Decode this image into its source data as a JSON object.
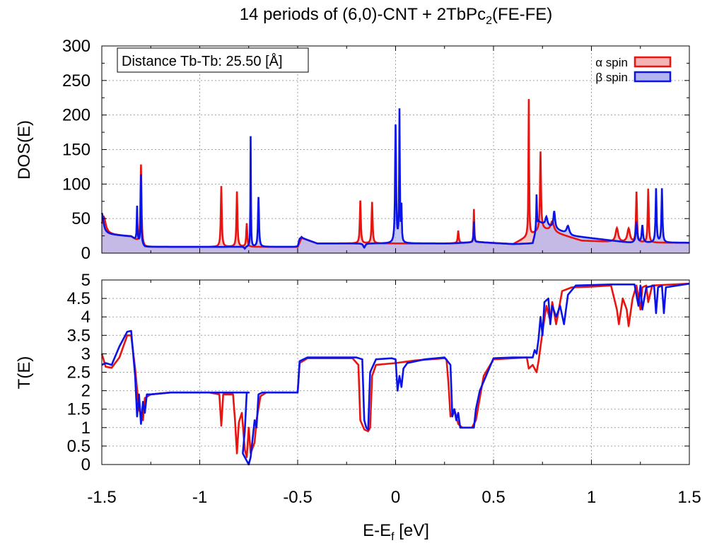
{
  "title": {
    "main": "14 periods of (6,0)-CNT + 2TbPc",
    "sub": "2",
    "tail": "(FE-FE)"
  },
  "colors": {
    "alpha": "#e8140f",
    "beta": "#0a14e6",
    "alpha_fill": "#f5b4b4",
    "beta_fill": "#b4b4f0",
    "overlap_fill": "#c8a0d4"
  },
  "annotation": "Distance Tb-Tb: 25.50 [Å]",
  "legend": [
    {
      "label": "α spin",
      "series": "alpha"
    },
    {
      "label": "β spin",
      "series": "beta"
    }
  ],
  "xaxis": {
    "label_main": "E-E",
    "label_sub": "f",
    "label_tail": " [eV]",
    "range": [
      -1.5,
      1.5
    ],
    "ticks": [
      "-1.5",
      "-1",
      "-0.5",
      "0",
      "0.5",
      "1",
      "1.5"
    ]
  },
  "chart_data": [
    {
      "type": "area",
      "ylabel": "DOS(E)",
      "xlim": [
        -1.5,
        1.5
      ],
      "ylim": [
        0,
        300
      ],
      "yticks": [
        "0",
        "50",
        "100",
        "150",
        "200",
        "250",
        "300"
      ],
      "grid": true,
      "legend_position": "top-right",
      "series": [
        {
          "name": "α spin",
          "baseline": [
            [
              -1.5,
              28
            ],
            [
              -1.35,
              24
            ],
            [
              -1.28,
              9
            ],
            [
              -0.5,
              9
            ],
            [
              -0.48,
              22
            ],
            [
              -0.4,
              14
            ],
            [
              0.28,
              14
            ],
            [
              0.42,
              16
            ],
            [
              0.6,
              13
            ],
            [
              0.75,
              35
            ],
            [
              0.95,
              18
            ],
            [
              1.2,
              15
            ],
            [
              1.5,
              15
            ]
          ],
          "peaks": [
            [
              -1.49,
              35,
              0.012
            ],
            [
              -1.3,
              125,
              0.003
            ],
            [
              -0.89,
              98,
              0.003
            ],
            [
              -0.81,
              90,
              0.003
            ],
            [
              -0.76,
              44,
              0.003
            ],
            [
              -0.18,
              72,
              0.003
            ],
            [
              -0.12,
              70,
              0.003
            ],
            [
              0.32,
              28,
              0.003
            ],
            [
              0.4,
              58,
              0.002
            ],
            [
              0.68,
              208,
              0.002
            ],
            [
              0.74,
              123,
              0.003
            ],
            [
              0.8,
              25,
              0.01
            ],
            [
              1.13,
              30,
              0.008
            ],
            [
              1.19,
              30,
              0.008
            ],
            [
              1.23,
              83,
              0.003
            ],
            [
              1.29,
              88,
              0.003
            ]
          ]
        },
        {
          "name": "β spin",
          "baseline": [
            [
              -1.5,
              28
            ],
            [
              -1.35,
              24
            ],
            [
              -1.28,
              9
            ],
            [
              -0.5,
              9
            ],
            [
              -0.48,
              22
            ],
            [
              -0.4,
              14
            ],
            [
              0.28,
              14
            ],
            [
              0.42,
              16
            ],
            [
              0.6,
              13
            ],
            [
              0.7,
              14
            ],
            [
              0.73,
              45
            ],
            [
              0.9,
              25
            ],
            [
              1.2,
              15
            ],
            [
              1.5,
              15
            ]
          ],
          "peaks": [
            [
              -1.5,
              40,
              0.01
            ],
            [
              -1.32,
              60,
              0.002
            ],
            [
              -1.3,
              110,
              0.002
            ],
            [
              -0.74,
              170,
              0.0015
            ],
            [
              -0.7,
              82,
              0.003
            ],
            [
              -0.49,
              15,
              0.006
            ],
            [
              0.0,
              180,
              0.003
            ],
            [
              0.02,
              200,
              0.002
            ],
            [
              0.03,
              60,
              0.002
            ],
            [
              0.29,
              10,
              0.005
            ],
            [
              0.4,
              40,
              0.002
            ],
            [
              0.72,
              60,
              0.002
            ],
            [
              0.77,
              22,
              0.006
            ],
            [
              0.81,
              35,
              0.005
            ],
            [
              0.88,
              22,
              0.008
            ],
            [
              1.23,
              40,
              0.004
            ],
            [
              1.26,
              35,
              0.004
            ],
            [
              1.33,
              88,
              0.003
            ],
            [
              1.36,
              88,
              0.003
            ]
          ],
          "dips": [
            [
              -0.77,
              6,
              0.004
            ],
            [
              -0.16,
              8,
              0.006
            ]
          ]
        }
      ]
    },
    {
      "type": "line",
      "ylabel": "T(E)",
      "xlim": [
        -1.5,
        1.5
      ],
      "ylim": [
        0,
        5
      ],
      "yticks": [
        "0",
        "0.5",
        "1",
        "1.5",
        "2",
        "2.5",
        "3",
        "3.5",
        "4",
        "4.5",
        "5"
      ],
      "grid": true,
      "series": [
        {
          "name": "α spin",
          "points": [
            [
              -1.5,
              3.0
            ],
            [
              -1.48,
              2.65
            ],
            [
              -1.45,
              2.62
            ],
            [
              -1.41,
              2.9
            ],
            [
              -1.37,
              3.5
            ],
            [
              -1.35,
              3.5
            ],
            [
              -1.33,
              2.6
            ],
            [
              -1.31,
              1.5
            ],
            [
              -1.29,
              1.2
            ],
            [
              -1.28,
              1.8
            ],
            [
              -1.25,
              1.9
            ],
            [
              -1.15,
              1.95
            ],
            [
              -0.95,
              1.95
            ],
            [
              -0.9,
              1.9
            ],
            [
              -0.89,
              1.05
            ],
            [
              -0.88,
              1.9
            ],
            [
              -0.83,
              1.9
            ],
            [
              -0.82,
              1.2
            ],
            [
              -0.81,
              0.3
            ],
            [
              -0.8,
              1.15
            ],
            [
              -0.785,
              1.4
            ],
            [
              -0.77,
              0.4
            ],
            [
              -0.76,
              0.2
            ],
            [
              -0.75,
              1.0
            ],
            [
              -0.74,
              0.3
            ],
            [
              -0.72,
              0.6
            ],
            [
              -0.71,
              1.2
            ],
            [
              -0.69,
              1.85
            ],
            [
              -0.66,
              1.95
            ],
            [
              -0.5,
              1.95
            ],
            [
              -0.49,
              2.75
            ],
            [
              -0.45,
              2.88
            ],
            [
              -0.22,
              2.88
            ],
            [
              -0.19,
              2.7
            ],
            [
              -0.18,
              1.2
            ],
            [
              -0.16,
              0.95
            ],
            [
              -0.14,
              0.9
            ],
            [
              -0.13,
              1.0
            ],
            [
              -0.12,
              2.4
            ],
            [
              -0.1,
              2.7
            ],
            [
              0.0,
              2.75
            ],
            [
              0.1,
              2.82
            ],
            [
              0.25,
              2.88
            ],
            [
              0.26,
              2.85
            ],
            [
              0.27,
              2.2
            ],
            [
              0.28,
              1.3
            ],
            [
              0.3,
              1.5
            ],
            [
              0.32,
              1.1
            ],
            [
              0.34,
              1.0
            ],
            [
              0.39,
              1.0
            ],
            [
              0.41,
              1.2
            ],
            [
              0.43,
              1.8
            ],
            [
              0.45,
              2.4
            ],
            [
              0.5,
              2.85
            ],
            [
              0.6,
              2.88
            ],
            [
              0.67,
              2.9
            ],
            [
              0.68,
              2.6
            ],
            [
              0.7,
              2.7
            ],
            [
              0.72,
              2.5
            ],
            [
              0.73,
              2.8
            ],
            [
              0.75,
              3.6
            ],
            [
              0.77,
              4.3
            ],
            [
              0.79,
              3.9
            ],
            [
              0.8,
              4.4
            ],
            [
              0.82,
              3.8
            ],
            [
              0.85,
              4.7
            ],
            [
              0.9,
              4.8
            ],
            [
              1.0,
              4.82
            ],
            [
              1.1,
              4.85
            ],
            [
              1.13,
              4.2
            ],
            [
              1.14,
              3.8
            ],
            [
              1.16,
              4.5
            ],
            [
              1.18,
              4.2
            ],
            [
              1.19,
              3.75
            ],
            [
              1.21,
              4.5
            ],
            [
              1.23,
              4.85
            ],
            [
              1.25,
              4.2
            ],
            [
              1.26,
              4.8
            ],
            [
              1.28,
              4.85
            ],
            [
              1.29,
              4.4
            ],
            [
              1.31,
              4.85
            ],
            [
              1.5,
              4.9
            ]
          ]
        },
        {
          "name": "β spin",
          "points": [
            [
              -1.5,
              2.7
            ],
            [
              -1.48,
              2.75
            ],
            [
              -1.45,
              2.7
            ],
            [
              -1.41,
              3.2
            ],
            [
              -1.37,
              3.6
            ],
            [
              -1.35,
              3.62
            ],
            [
              -1.33,
              2.4
            ],
            [
              -1.32,
              1.3
            ],
            [
              -1.31,
              1.9
            ],
            [
              -1.3,
              1.1
            ],
            [
              -1.29,
              1.7
            ],
            [
              -1.28,
              1.4
            ],
            [
              -1.27,
              1.9
            ],
            [
              -1.25,
              1.9
            ],
            [
              -1.15,
              1.95
            ],
            [
              -0.75,
              1.95
            ],
            [
              -0.76,
              1.95
            ],
            [
              -0.77,
              0.9
            ],
            [
              -0.78,
              0.3
            ],
            [
              -0.76,
              0.1
            ],
            [
              -0.75,
              0.0
            ],
            [
              -0.74,
              0.2
            ],
            [
              -0.73,
              0.7
            ],
            [
              -0.72,
              1.2
            ],
            [
              -0.71,
              1.0
            ],
            [
              -0.7,
              1.9
            ],
            [
              -0.68,
              1.95
            ],
            [
              -0.5,
              1.95
            ],
            [
              -0.49,
              2.8
            ],
            [
              -0.45,
              2.9
            ],
            [
              -0.2,
              2.9
            ],
            [
              -0.17,
              2.85
            ],
            [
              -0.16,
              1.2
            ],
            [
              -0.15,
              1.0
            ],
            [
              -0.14,
              0.95
            ],
            [
              -0.13,
              2.5
            ],
            [
              -0.1,
              2.85
            ],
            [
              -0.02,
              2.88
            ],
            [
              0.0,
              2.85
            ],
            [
              0.01,
              2.0
            ],
            [
              0.02,
              2.4
            ],
            [
              0.03,
              2.1
            ],
            [
              0.04,
              2.6
            ],
            [
              0.06,
              2.75
            ],
            [
              0.15,
              2.85
            ],
            [
              0.25,
              2.9
            ],
            [
              0.28,
              2.7
            ],
            [
              0.29,
              1.3
            ],
            [
              0.3,
              1.5
            ],
            [
              0.31,
              1.2
            ],
            [
              0.32,
              1.4
            ],
            [
              0.33,
              1.0
            ],
            [
              0.39,
              1.0
            ],
            [
              0.4,
              1.0
            ],
            [
              0.41,
              1.5
            ],
            [
              0.43,
              2.0
            ],
            [
              0.5,
              2.88
            ],
            [
              0.6,
              2.9
            ],
            [
              0.7,
              2.9
            ],
            [
              0.71,
              3.1
            ],
            [
              0.72,
              3.0
            ],
            [
              0.73,
              3.4
            ],
            [
              0.74,
              4.0
            ],
            [
              0.75,
              3.5
            ],
            [
              0.76,
              4.4
            ],
            [
              0.78,
              4.5
            ],
            [
              0.79,
              3.8
            ],
            [
              0.8,
              4.3
            ],
            [
              0.82,
              4.0
            ],
            [
              0.84,
              4.3
            ],
            [
              0.86,
              3.8
            ],
            [
              0.88,
              4.6
            ],
            [
              0.92,
              4.85
            ],
            [
              1.1,
              4.88
            ],
            [
              1.22,
              4.88
            ],
            [
              1.24,
              4.3
            ],
            [
              1.25,
              4.85
            ],
            [
              1.26,
              4.2
            ],
            [
              1.28,
              4.8
            ],
            [
              1.32,
              4.85
            ],
            [
              1.33,
              4.1
            ],
            [
              1.34,
              4.8
            ],
            [
              1.36,
              4.85
            ],
            [
              1.37,
              4.1
            ],
            [
              1.38,
              4.8
            ],
            [
              1.5,
              4.9
            ]
          ]
        }
      ]
    }
  ]
}
